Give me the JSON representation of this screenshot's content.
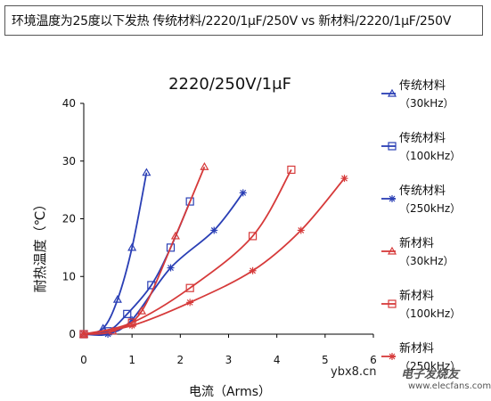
{
  "header": {
    "text": "环境温度为25度以下发热 传统材料/2220/1μF/250V vs 新材料/2220/1μF/250V"
  },
  "watermark": {
    "site": "ybx8.cn",
    "brand": "电子发烧友",
    "url": "www.elecfans.com"
  },
  "colors": {
    "traditional": "#2a3fb5",
    "new": "#d63a3a",
    "axis": "#000000",
    "background": "#ffffff"
  },
  "chart_data": {
    "type": "line",
    "title": "2220/250V/1μF",
    "xlabel": "电流（Arms）",
    "ylabel": "耐热温度（℃）",
    "xlim": [
      0,
      6
    ],
    "ylim": [
      0,
      40
    ],
    "xticks": [
      "0",
      "1",
      "2",
      "3",
      "4",
      "5",
      "6"
    ],
    "yticks": [
      "0",
      "10",
      "20",
      "30",
      "40"
    ],
    "grid": false,
    "legend_position": "right",
    "series": [
      {
        "name": "传统材料",
        "freq": "（30kHz）",
        "color": "#2a3fb5",
        "marker": "triangle",
        "x": [
          0,
          0.4,
          0.7,
          1.0,
          1.3
        ],
        "y": [
          0,
          1,
          6,
          15,
          28
        ]
      },
      {
        "name": "传统材料",
        "freq": "（100kHz）",
        "color": "#2a3fb5",
        "marker": "square",
        "x": [
          0,
          0.5,
          0.9,
          1.4,
          1.8,
          2.2
        ],
        "y": [
          0,
          0.5,
          3.5,
          8.5,
          15,
          23
        ]
      },
      {
        "name": "传统材料",
        "freq": "（250kHz）",
        "color": "#2a3fb5",
        "marker": "asterisk",
        "x": [
          0,
          0.5,
          1.0,
          1.8,
          2.7,
          3.3
        ],
        "y": [
          0,
          0,
          2.5,
          11.5,
          18,
          24.5
        ]
      },
      {
        "name": "新材料",
        "freq": "（30kHz）",
        "color": "#d63a3a",
        "marker": "triangle",
        "x": [
          0,
          0.6,
          1.2,
          1.9,
          2.5
        ],
        "y": [
          0,
          0.5,
          4,
          17,
          29
        ]
      },
      {
        "name": "新材料",
        "freq": "（100kHz）",
        "color": "#d63a3a",
        "marker": "square",
        "x": [
          0,
          1.0,
          2.2,
          3.5,
          4.3
        ],
        "y": [
          0,
          2,
          8,
          17,
          28.5
        ]
      },
      {
        "name": "新材料",
        "freq": "（250kHz）",
        "color": "#d63a3a",
        "marker": "asterisk",
        "x": [
          0,
          1.0,
          2.2,
          3.5,
          4.5,
          5.4
        ],
        "y": [
          0,
          1.5,
          5.5,
          11,
          18,
          27
        ]
      }
    ]
  }
}
